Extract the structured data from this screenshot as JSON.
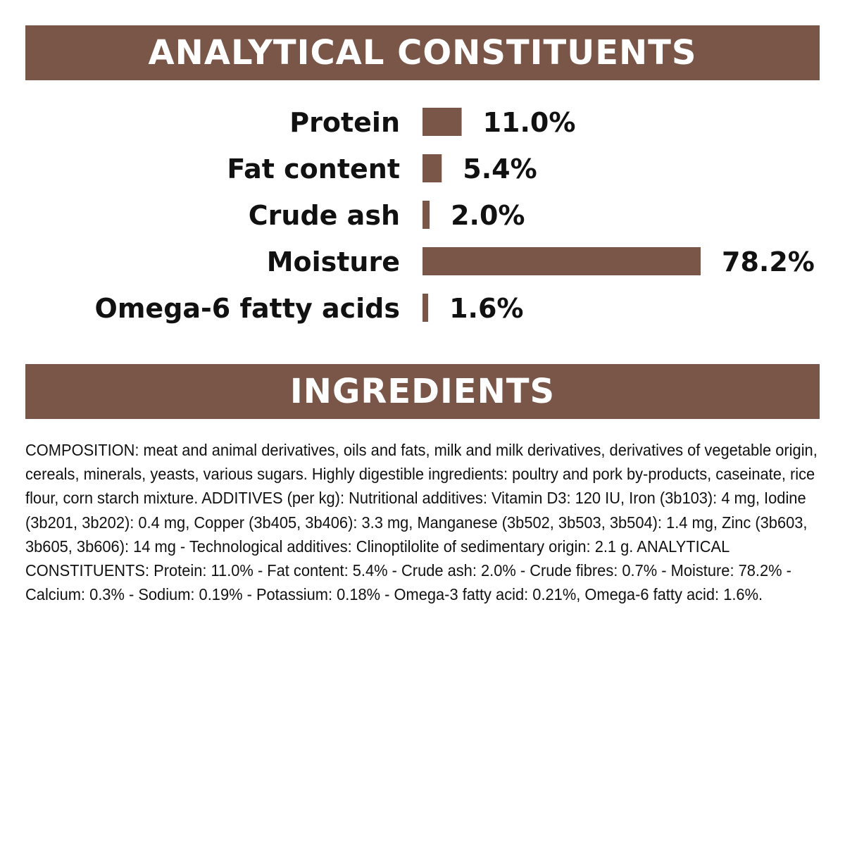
{
  "colors": {
    "accent": "#7a5648",
    "text": "#111111",
    "banner_text": "#ffffff",
    "background": "#ffffff"
  },
  "sections": {
    "analytical_title": "ANALYTICAL CONSTITUENTS",
    "ingredients_title": "INGREDIENTS"
  },
  "chart_data": {
    "type": "bar",
    "orientation": "horizontal",
    "title": "ANALYTICAL CONSTITUENTS",
    "categories": [
      "Protein",
      "Fat content",
      "Crude ash",
      "Moisture",
      "Omega-6 fatty acids"
    ],
    "values": [
      11.0,
      5.4,
      2.0,
      78.2,
      1.6
    ],
    "value_labels": [
      "11.0%",
      "5.4%",
      "2.0%",
      "78.2%",
      "1.6%"
    ],
    "unit": "%",
    "xlim": [
      0,
      78.2
    ],
    "grid": false,
    "legend": "none"
  },
  "ingredients": {
    "text": "COMPOSITION: meat and animal derivatives, oils and fats, milk and milk derivatives, derivatives of vegetable origin, cereals, minerals, yeasts, various sugars. Highly digestible ingredients: poultry and pork by-products, caseinate, rice flour, corn starch mixture. ADDITIVES (per kg): Nutritional additives: Vitamin D3: 120 IU, Iron (3b103): 4 mg, Iodine (3b201, 3b202): 0.4 mg, Copper (3b405, 3b406): 3.3 mg, Manganese (3b502, 3b503, 3b504): 1.4 mg, Zinc (3b603, 3b605, 3b606): 14 mg - Technological additives: Clinoptilolite of sedimentary origin: 2.1 g. ANALYTICAL CONSTITUENTS: Protein: 11.0% - Fat content: 5.4% - Crude ash: 2.0% - Crude fibres: 0.7% - Moisture: 78.2% - Calcium: 0.3% - Sodium: 0.19% - Potassium: 0.18% - Omega-3 fatty acid: 0.21%, Omega-6 fatty acid: 1.6%."
  }
}
